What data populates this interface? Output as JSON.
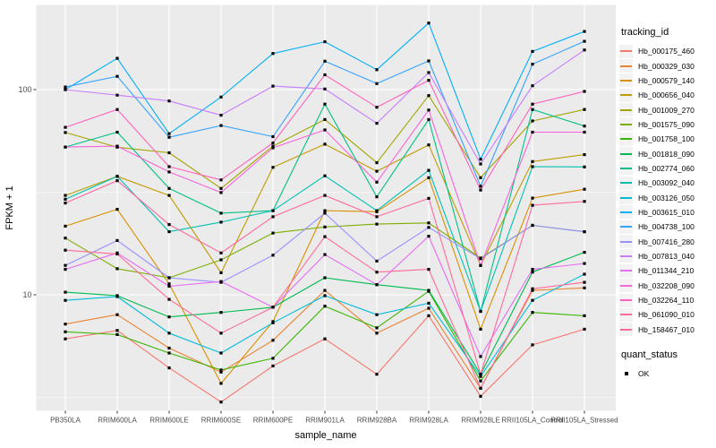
{
  "chart_data": {
    "type": "line",
    "title": "",
    "xlabel": "sample_name",
    "ylabel": "FPKM + 1",
    "y_scale": "log10",
    "ylim": [
      2.7,
      260
    ],
    "grid": true,
    "y_ticks": [
      {
        "value": 10,
        "label": "10"
      },
      {
        "value": 100,
        "label": "100"
      }
    ],
    "y_minor_gridlines": [
      3.162,
      31.62
    ],
    "categories": [
      "PB350LA",
      "RRIM600LA",
      "RRIM600LE",
      "RRIM600SE",
      "RRIM600PE",
      "RRIM901LA",
      "RRIM928BA",
      "RRIM928LA",
      "RRIM928LE",
      "RRII105LA_Control",
      "RRII105LA_Stressed"
    ],
    "series": [
      {
        "name": "Hb_000175_460",
        "color": "#F8766D",
        "values": [
          6.1,
          6.7,
          4.4,
          3.0,
          4.5,
          6.1,
          4.1,
          7.9,
          3.2,
          5.7,
          6.8
        ]
      },
      {
        "name": "Hb_000329_030",
        "color": "#EA8331",
        "values": [
          7.2,
          8.0,
          5.5,
          4.2,
          6.0,
          10.5,
          6.5,
          8.6,
          3.5,
          10.5,
          10.8
        ]
      },
      {
        "name": "Hb_000579_140",
        "color": "#D89000",
        "values": [
          21.6,
          26.1,
          11.3,
          3.7,
          7.4,
          25.7,
          25.4,
          37.2,
          6.8,
          29.6,
          32.7
        ]
      },
      {
        "name": "Hb_000656_040",
        "color": "#C09B00",
        "values": [
          30.5,
          37.8,
          30.5,
          12.8,
          41.8,
          54.2,
          40.0,
          53.8,
          13.9,
          44.6,
          48.2
        ]
      },
      {
        "name": "Hb_001009_270",
        "color": "#A3A500",
        "values": [
          61.8,
          52.4,
          49.2,
          33.0,
          53.0,
          71.5,
          44.0,
          93.5,
          37.2,
          70.3,
          80.0
        ]
      },
      {
        "name": "Hb_001575_090",
        "color": "#7CAE00",
        "values": [
          18.9,
          13.4,
          12.1,
          14.8,
          20.0,
          21.4,
          22.1,
          22.4,
          15.1,
          21.8,
          20.3
        ]
      },
      {
        "name": "Hb_001758_100",
        "color": "#39B600",
        "values": [
          6.6,
          6.4,
          5.2,
          4.3,
          4.9,
          8.8,
          6.9,
          10.4,
          3.8,
          8.2,
          7.9
        ]
      },
      {
        "name": "Hb_001818_090",
        "color": "#00BB4E",
        "values": [
          10.3,
          9.9,
          7.8,
          8.2,
          8.7,
          12.1,
          11.2,
          10.5,
          4.1,
          12.9,
          16.1
        ]
      },
      {
        "name": "Hb_002774_060",
        "color": "#00C087",
        "values": [
          52.5,
          62.0,
          33.0,
          25.0,
          25.7,
          85.0,
          30.0,
          71.5,
          8.3,
          80.0,
          66.4
        ]
      },
      {
        "name": "Hb_003092_040",
        "color": "#00C0B2",
        "values": [
          29.2,
          37.8,
          20.3,
          22.6,
          25.7,
          38.0,
          25.7,
          40.4,
          8.3,
          42.1,
          42.0
        ]
      },
      {
        "name": "Hb_003126_050",
        "color": "#00BCD8",
        "values": [
          9.4,
          9.8,
          6.5,
          5.2,
          7.3,
          9.9,
          8.0,
          9.1,
          4.0,
          9.4,
          12.6
        ]
      },
      {
        "name": "Hb_003615_010",
        "color": "#00B0F6",
        "values": [
          100.0,
          142.0,
          61.0,
          92.0,
          150.0,
          171.0,
          125.0,
          211.0,
          45.8,
          153.5,
          192.0
        ]
      },
      {
        "name": "Hb_004738_100",
        "color": "#35A2FF",
        "values": [
          103.0,
          116.0,
          58.6,
          66.8,
          59.0,
          137.5,
          107.0,
          138.0,
          33.8,
          133.0,
          172.0
        ]
      },
      {
        "name": "Hb_007416_280",
        "color": "#9590FF",
        "values": [
          13.9,
          18.4,
          12.1,
          11.5,
          15.6,
          25.0,
          14.6,
          21.3,
          15.0,
          21.8,
          20.3
        ]
      },
      {
        "name": "Hb_007813_040",
        "color": "#C77CFF",
        "values": [
          100.0,
          94.0,
          88.0,
          75.0,
          104.0,
          100.7,
          68.5,
          121.0,
          43.4,
          104.4,
          156.0
        ]
      },
      {
        "name": "Hb_011344_210",
        "color": "#E76BF3",
        "values": [
          13.3,
          16.0,
          11.0,
          11.6,
          8.7,
          15.7,
          11.2,
          19.3,
          5.0,
          13.3,
          14.2
        ]
      },
      {
        "name": "Hb_032208_090",
        "color": "#FA62DB",
        "values": [
          52.5,
          53.0,
          39.7,
          31.5,
          52.0,
          63.6,
          35.4,
          79.5,
          13.9,
          62.0,
          62.0
        ]
      },
      {
        "name": "Hb_032264_110",
        "color": "#FF62BC",
        "values": [
          65.5,
          80.0,
          42.1,
          36.3,
          55.0,
          118.0,
          82.0,
          111.0,
          32.4,
          85.0,
          98.0
        ]
      },
      {
        "name": "Hb_061090_010",
        "color": "#FF6A98",
        "values": [
          16.5,
          15.8,
          9.5,
          6.5,
          8.7,
          19.2,
          12.9,
          13.3,
          3.5,
          10.7,
          11.5
        ]
      },
      {
        "name": "Hb_158467_010",
        "color": "#FF689E",
        "values": [
          28.0,
          36.0,
          22.0,
          16.0,
          24.0,
          30.5,
          24.0,
          29.5,
          4.1,
          27.3,
          28.5
        ]
      }
    ],
    "legend": {
      "color_legend_title": "tracking_id",
      "shape_legend_title": "quant_status",
      "shape_items": [
        {
          "label": "OK",
          "marker": "square",
          "color": "#000000"
        }
      ],
      "position": "right"
    },
    "style": {
      "panel_bg": "#EBEBEB",
      "grid_color": "#FFFFFF",
      "point_color": "#000000",
      "axis_text_color": "#4D4D4D",
      "axis_title_color": "#000000",
      "tick_color": "#333333",
      "legend_key_bg": "#F2F2F2",
      "background": "#FFFFFF"
    }
  }
}
